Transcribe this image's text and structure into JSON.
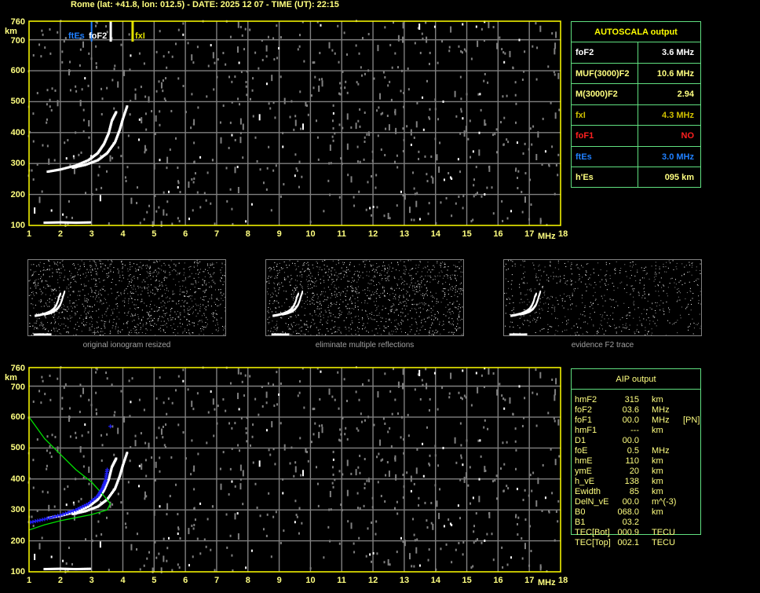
{
  "header": {
    "title": "Rome (lat: +41.8, lon: 012.5) - DATE: 2025 12 07 - TIME (UT): 22:15"
  },
  "colors": {
    "axis": "#ffff00",
    "grid": "#808080",
    "noise": "#808080",
    "trace": "#ffffff",
    "ftEs": "#2080ff",
    "foF2": "#ffffff",
    "fxI": "#e0e000",
    "profile": "#00e000",
    "aip_trace": "#2020ff",
    "table_border": "#60e080"
  },
  "axes": {
    "y_unit": "km",
    "x_unit": "MHz",
    "y_ticks": [
      "760",
      "700",
      "600",
      "500",
      "400",
      "300",
      "200",
      "100"
    ],
    "x_ticks": [
      "1",
      "2",
      "3",
      "4",
      "5",
      "6",
      "7",
      "8",
      "9",
      "10",
      "11",
      "12",
      "13",
      "14",
      "15",
      "16",
      "17",
      "18"
    ]
  },
  "markers": {
    "ftEs": "ftEs",
    "foF2": "foF2",
    "fxI": "fxI"
  },
  "autoscala": {
    "title": "AUTOSCALA output",
    "rows": [
      {
        "label": "foF2",
        "value": "3.6 MHz",
        "color": "#ffffff"
      },
      {
        "label": "MUF(3000)F2",
        "value": "10.6 MHz",
        "color": "#ffff80"
      },
      {
        "label": "M(3000)F2",
        "value": "2.94",
        "color": "#ffff80"
      },
      {
        "label": "fxI",
        "value": "4.3 MHz",
        "color": "#d0c000"
      },
      {
        "label": "foF1",
        "value": "NO",
        "color": "#ff2020"
      },
      {
        "label": "ftEs",
        "value": "3.0 MHz",
        "color": "#2080ff"
      },
      {
        "label": "h'Es",
        "value": "095     km",
        "color": "#ffff80"
      }
    ]
  },
  "thumbnails": [
    {
      "caption": "original ionogram resized"
    },
    {
      "caption": "eliminate multiple reflections"
    },
    {
      "caption": "evidence F2 trace"
    }
  ],
  "aip": {
    "title": "AIP output",
    "rows": [
      [
        "hmF2",
        "315",
        "km",
        ""
      ],
      [
        "foF2",
        "03.6",
        "MHz",
        ""
      ],
      [
        "foF1",
        "00.0",
        "MHz",
        "[PN]"
      ],
      [
        "hmF1",
        "---",
        "km",
        ""
      ],
      [
        "D1",
        "00.0",
        "",
        ""
      ],
      [
        "foE",
        "0.5",
        "MHz",
        ""
      ],
      [
        "hmE",
        "110",
        "km",
        ""
      ],
      [
        "ymE",
        "20",
        "km",
        ""
      ],
      [
        "h_vE",
        "138",
        "km",
        ""
      ],
      [
        "Ewidth",
        "85",
        "km",
        ""
      ],
      [
        "DelN_vE",
        "00.0",
        "m^(-3)",
        ""
      ],
      [
        "B0",
        "068.0",
        "km",
        ""
      ],
      [
        "B1",
        "03.2",
        "",
        ""
      ],
      [
        "TEC[Bot]",
        "000.9",
        "TECU",
        ""
      ],
      [
        "TEC[Top]",
        "002.1",
        "TECU",
        ""
      ]
    ]
  },
  "chart_data": [
    {
      "type": "scatter",
      "title": "",
      "xlabel": "MHz",
      "ylabel": "km",
      "xlim": [
        1,
        18
      ],
      "ylim": [
        100,
        760
      ],
      "grid": true,
      "markers": {
        "ftEs": 3.0,
        "foF2": 3.6,
        "fxI": 4.3
      },
      "traces": [
        {
          "name": "",
          "points": [
            [
              1.6,
              275
            ],
            [
              2.0,
              282
            ],
            [
              2.5,
              295
            ],
            [
              2.9,
              312
            ],
            [
              3.2,
              335
            ],
            [
              3.4,
              365
            ],
            [
              3.55,
              400
            ],
            [
              3.65,
              440
            ],
            [
              3.8,
              470
            ]
          ]
        },
        {
          "name": "",
          "points": [
            [
              2.4,
              288
            ],
            [
              2.8,
              297
            ],
            [
              3.2,
              312
            ],
            [
              3.5,
              335
            ],
            [
              3.75,
              370
            ],
            [
              3.9,
              410
            ],
            [
              4.0,
              445
            ],
            [
              4.15,
              490
            ]
          ]
        },
        {
          "name": "",
          "points": [
            [
              1.5,
              110
            ],
            [
              2.0,
              111
            ],
            [
              2.5,
              110
            ],
            [
              3.0,
              111
            ]
          ]
        }
      ]
    },
    {
      "type": "scatter",
      "title": "",
      "xlabel": "MHz",
      "ylabel": "km",
      "xlim": [
        1,
        18
      ],
      "ylim": [
        100,
        760
      ],
      "grid": true,
      "traces": [
        {
          "name": "",
          "points": [
            [
              1.6,
              275
            ],
            [
              2.0,
              282
            ],
            [
              2.5,
              295
            ],
            [
              2.9,
              312
            ],
            [
              3.2,
              335
            ],
            [
              3.4,
              365
            ],
            [
              3.55,
              400
            ],
            [
              3.65,
              440
            ],
            [
              3.8,
              470
            ]
          ]
        },
        {
          "name": "",
          "points": [
            [
              2.4,
              288
            ],
            [
              2.8,
              297
            ],
            [
              3.2,
              312
            ],
            [
              3.5,
              335
            ],
            [
              3.75,
              370
            ],
            [
              3.9,
              410
            ],
            [
              4.0,
              445
            ],
            [
              4.15,
              490
            ]
          ]
        },
        {
          "name": "",
          "points": [
            [
              1.5,
              110
            ],
            [
              2.0,
              111
            ],
            [
              2.5,
              110
            ],
            [
              3.0,
              111
            ]
          ]
        }
      ],
      "profile": [
        [
          1.0,
          600
        ],
        [
          1.5,
          530
        ],
        [
          2.0,
          480
        ],
        [
          2.5,
          430
        ],
        [
          3.0,
          390
        ],
        [
          3.4,
          345
        ],
        [
          3.6,
          320
        ],
        [
          3.5,
          300
        ],
        [
          3.0,
          285
        ],
        [
          2.5,
          275
        ],
        [
          2.0,
          265
        ],
        [
          1.5,
          252
        ],
        [
          1.0,
          235
        ]
      ],
      "aip_trace": [
        [
          1.05,
          260
        ],
        [
          1.5,
          270
        ],
        [
          2.0,
          283
        ],
        [
          2.5,
          300
        ],
        [
          2.9,
          320
        ],
        [
          3.2,
          345
        ],
        [
          3.35,
          370
        ],
        [
          3.45,
          395
        ],
        [
          3.5,
          430
        ],
        [
          3.6,
          570
        ]
      ]
    }
  ]
}
